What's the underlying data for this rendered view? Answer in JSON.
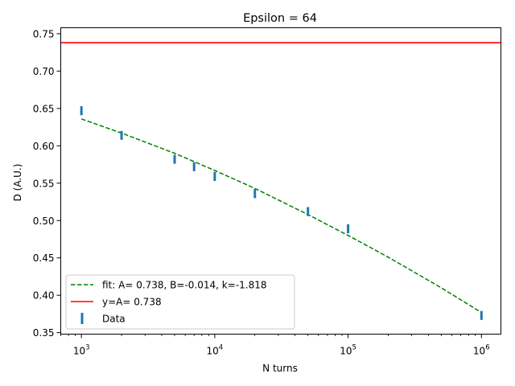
{
  "chart_data": {
    "type": "scatter",
    "title": "Epsilon = 64",
    "xlabel": "N turns",
    "ylabel": "D (A.U.)",
    "x_scale": "log",
    "xlim": [
      700,
      1400000
    ],
    "ylim": [
      0.348,
      0.758
    ],
    "grid": false,
    "legend_position": "lower-left",
    "x_ticks": [
      {
        "value": 1000,
        "base": "10",
        "exp": "3"
      },
      {
        "value": 10000,
        "base": "10",
        "exp": "4"
      },
      {
        "value": 100000,
        "base": "10",
        "exp": "5"
      },
      {
        "value": 1000000,
        "base": "10",
        "exp": "6"
      }
    ],
    "y_ticks": [
      {
        "value": 0.35,
        "label": "0.35"
      },
      {
        "value": 0.4,
        "label": "0.40"
      },
      {
        "value": 0.45,
        "label": "0.45"
      },
      {
        "value": 0.5,
        "label": "0.50"
      },
      {
        "value": 0.55,
        "label": "0.55"
      },
      {
        "value": 0.6,
        "label": "0.60"
      },
      {
        "value": 0.65,
        "label": "0.65"
      },
      {
        "value": 0.7,
        "label": "0.70"
      },
      {
        "value": 0.75,
        "label": "0.75"
      }
    ],
    "series": [
      {
        "name": "fit: A= 0.738, B=-0.014, k=-1.818",
        "kind": "line",
        "style": "dashed",
        "color": "#008000",
        "x": [
          1000,
          2000,
          5000,
          10000,
          20000,
          50000,
          100000,
          200000,
          500000,
          1000000
        ],
        "y": [
          0.636,
          0.617,
          0.59,
          0.567,
          0.543,
          0.508,
          0.48,
          0.451,
          0.41,
          0.377
        ]
      },
      {
        "name": "y=A= 0.738",
        "kind": "hline",
        "style": "solid",
        "color": "#ff0000",
        "y": 0.738
      },
      {
        "name": "Data",
        "kind": "errorbar",
        "color": "#1f77b4",
        "x": [
          1000,
          2000,
          5000,
          7000,
          10000,
          20000,
          50000,
          100000,
          1000000
        ],
        "y": [
          0.647,
          0.614,
          0.582,
          0.572,
          0.559,
          0.536,
          0.512,
          0.489,
          0.373
        ],
        "yerr": [
          0.006,
          0.006,
          0.006,
          0.006,
          0.006,
          0.006,
          0.006,
          0.006,
          0.006
        ]
      }
    ]
  }
}
